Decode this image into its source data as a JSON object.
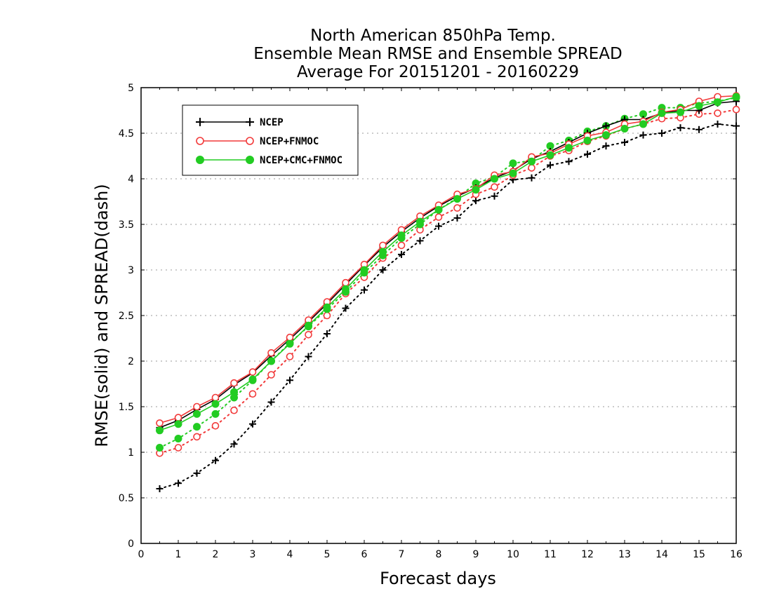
{
  "chart_data": {
    "type": "line",
    "title": [
      "North American 850hPa Temp.",
      "Ensemble Mean RMSE and Ensemble SPREAD",
      "Average For 20151201 - 20160229"
    ],
    "xlabel": "Forecast days",
    "ylabel": "RMSE(solid) and SPREAD(dash)",
    "xlim": [
      0,
      16
    ],
    "ylim": [
      0,
      5
    ],
    "xticks": [
      0,
      1,
      2,
      3,
      4,
      5,
      6,
      7,
      8,
      9,
      10,
      11,
      12,
      13,
      14,
      15,
      16
    ],
    "yticks": [
      0,
      0.5,
      1,
      1.5,
      2,
      2.5,
      3,
      3.5,
      4,
      4.5,
      5
    ],
    "xtick_labels": [
      "0",
      "1",
      "2",
      "3",
      "4",
      "5",
      "6",
      "7",
      "8",
      "9",
      "10",
      "11",
      "12",
      "13",
      "14",
      "15",
      "16"
    ],
    "ytick_labels": [
      "0",
      "0.5",
      "1",
      "1.5",
      "2",
      "2.5",
      "3",
      "3.5",
      "4",
      "4.5",
      "5"
    ],
    "grid": "horizontal-dotted",
    "legend_position": "top-left",
    "x": [
      0.5,
      1,
      1.5,
      2,
      2.5,
      3,
      3.5,
      4,
      4.5,
      5,
      5.5,
      6,
      6.5,
      7,
      7.5,
      8,
      8.5,
      9,
      9.5,
      10,
      10.5,
      11,
      11.5,
      12,
      12.5,
      13,
      13.5,
      14,
      14.5,
      15,
      15.5,
      16
    ],
    "series": [
      {
        "name": "NCEP",
        "kind": "rmse",
        "color": "#000000",
        "marker": "plus",
        "values": [
          1.27,
          1.35,
          1.47,
          1.58,
          1.74,
          1.87,
          2.06,
          2.24,
          2.43,
          2.63,
          2.84,
          3.05,
          3.25,
          3.42,
          3.57,
          3.7,
          3.81,
          3.9,
          4.01,
          4.09,
          4.22,
          4.3,
          4.4,
          4.5,
          4.58,
          4.65,
          4.65,
          4.72,
          4.75,
          4.75,
          4.83,
          4.85
        ]
      },
      {
        "name": "NCEP+FNMOC",
        "kind": "rmse",
        "color": "#f23a3a",
        "marker": "open-circle",
        "values": [
          1.32,
          1.38,
          1.5,
          1.6,
          1.76,
          1.88,
          2.09,
          2.26,
          2.45,
          2.65,
          2.86,
          3.06,
          3.27,
          3.44,
          3.59,
          3.71,
          3.83,
          3.89,
          4.04,
          4.08,
          4.24,
          4.28,
          4.38,
          4.47,
          4.51,
          4.6,
          4.63,
          4.73,
          4.76,
          4.85,
          4.9,
          4.91
        ]
      },
      {
        "name": "NCEP+CMC+FNMOC",
        "kind": "rmse",
        "color": "#22cc22",
        "marker": "filled-circle",
        "values": [
          1.24,
          1.31,
          1.42,
          1.53,
          1.66,
          1.8,
          2.0,
          2.19,
          2.39,
          2.59,
          2.79,
          3.0,
          3.2,
          3.38,
          3.53,
          3.66,
          3.78,
          3.88,
          4.0,
          4.06,
          4.19,
          4.26,
          4.34,
          4.42,
          4.48,
          4.55,
          4.6,
          4.72,
          4.73,
          4.8,
          4.84,
          4.9
        ]
      },
      {
        "name": "NCEP",
        "kind": "spread",
        "color": "#000000",
        "marker": "plus",
        "values": [
          0.6,
          0.66,
          0.77,
          0.91,
          1.09,
          1.31,
          1.55,
          1.79,
          2.05,
          2.3,
          2.58,
          2.78,
          3.0,
          3.17,
          3.32,
          3.48,
          3.57,
          3.76,
          3.81,
          3.99,
          4.01,
          4.15,
          4.19,
          4.27,
          4.36,
          4.4,
          4.48,
          4.5,
          4.56,
          4.54,
          4.6,
          4.58
        ]
      },
      {
        "name": "NCEP+FNMOC",
        "kind": "spread",
        "color": "#f23a3a",
        "marker": "open-circle",
        "values": [
          0.99,
          1.05,
          1.17,
          1.29,
          1.46,
          1.64,
          1.85,
          2.05,
          2.29,
          2.5,
          2.74,
          2.92,
          3.13,
          3.27,
          3.44,
          3.58,
          3.68,
          3.83,
          3.91,
          4.04,
          4.12,
          4.25,
          4.31,
          4.41,
          4.47,
          4.55,
          4.6,
          4.66,
          4.67,
          4.71,
          4.72,
          4.76
        ]
      },
      {
        "name": "NCEP+CMC+FNMOC",
        "kind": "spread",
        "color": "#22cc22",
        "marker": "filled-circle",
        "values": [
          1.05,
          1.15,
          1.28,
          1.42,
          1.6,
          1.79,
          2.0,
          2.2,
          2.38,
          2.57,
          2.76,
          2.97,
          3.16,
          3.35,
          3.5,
          3.66,
          3.79,
          3.95,
          4.02,
          4.17,
          4.2,
          4.36,
          4.42,
          4.52,
          4.58,
          4.66,
          4.71,
          4.78,
          4.78,
          4.83,
          4.85,
          4.89
        ]
      }
    ]
  }
}
